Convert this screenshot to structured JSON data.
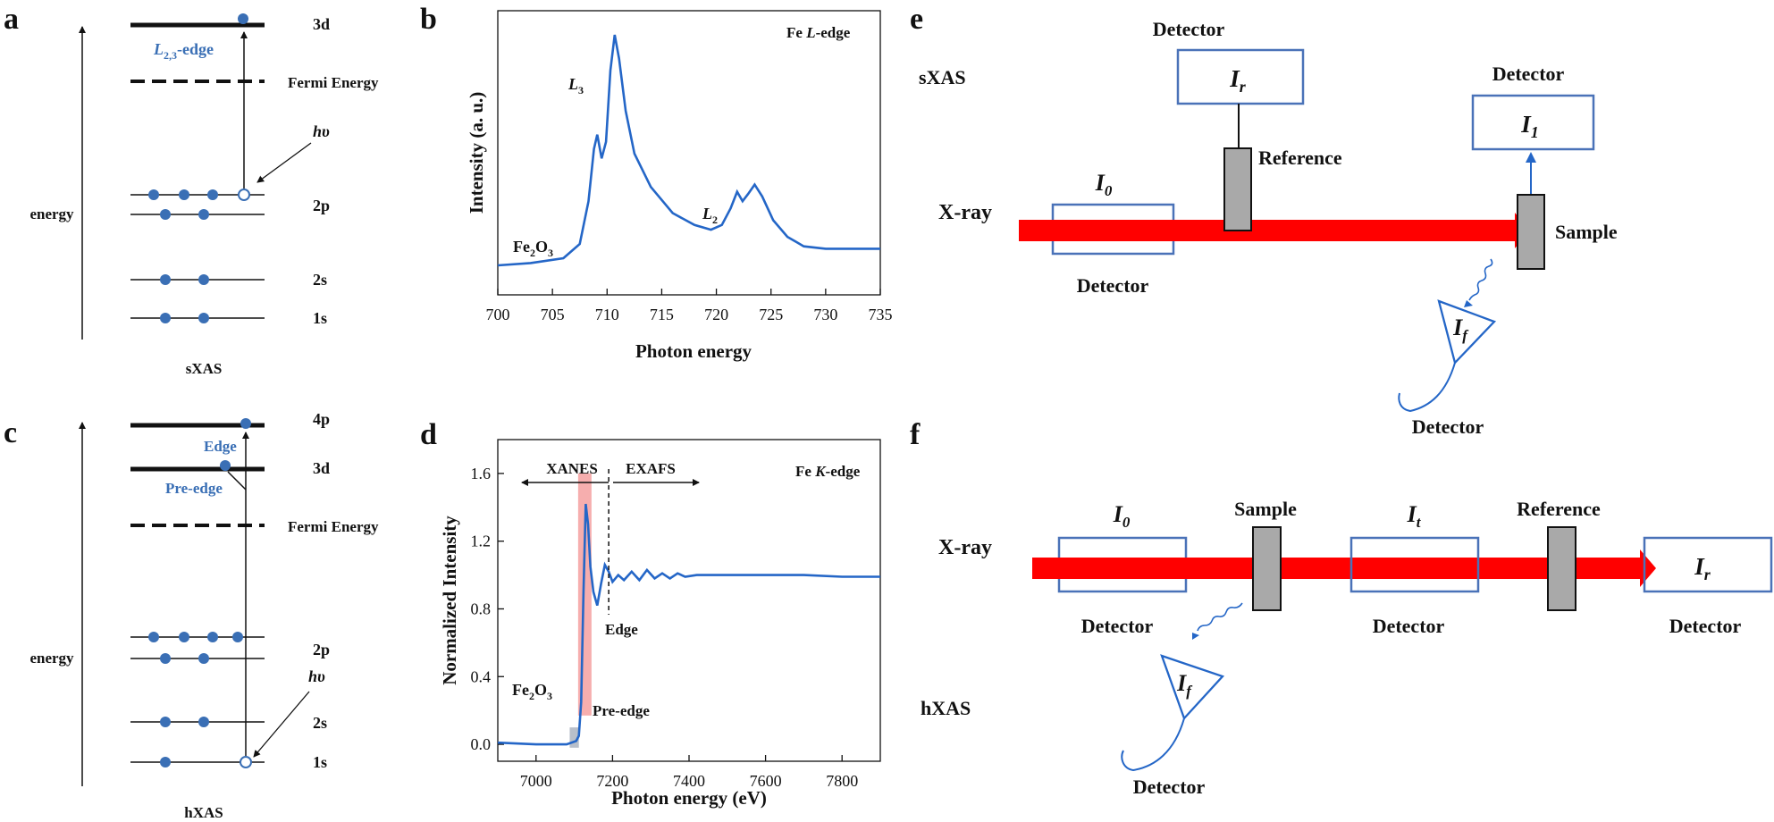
{
  "panels": {
    "a": {
      "letter": "a",
      "axis_label": "energy",
      "caption": "sXAS",
      "levels": {
        "l3d": "3d",
        "fermi": "Fermi Energy",
        "l2p": "2p",
        "l2s": "2s",
        "l1s": "1s"
      },
      "edge_label_prefix": "L",
      "edge_label_sub": "2,3",
      "edge_label_suffix": "-edge",
      "photon_label": "hυ"
    },
    "b": {
      "letter": "b",
      "title": "Fe L-edge",
      "title_prefix": "Fe ",
      "title_italic": "L",
      "title_suffix": "-edge",
      "sample": "Fe",
      "sample_sub": "2",
      "sample_suffix": "O",
      "sample_sub2": "3",
      "peak_l3": "L",
      "peak_l3_sub": "3",
      "peak_l2": "L",
      "peak_l2_sub": "2"
    },
    "c": {
      "letter": "c",
      "axis_label": "energy",
      "caption": "hXAS",
      "levels": {
        "l4p": "4p",
        "l3d": "3d",
        "fermi": "Fermi Energy",
        "l2p": "2p",
        "l2s": "2s",
        "l1s": "1s"
      },
      "edge_label": "Edge",
      "preedge_label": "Pre-edge",
      "photon_label": "hυ"
    },
    "d": {
      "letter": "d",
      "title_prefix": "Fe ",
      "title_italic": "K",
      "title_suffix": "-edge",
      "xanes": "XANES",
      "exafs": "EXAFS",
      "edge": "Edge",
      "preedge": "Pre-edge",
      "sample": "Fe",
      "sample_sub": "2",
      "sample_suffix": "O",
      "sample_sub2": "3"
    },
    "e": {
      "letter": "e",
      "mode": "sXAS",
      "xray": "X-ray",
      "detector_top": "Detector",
      "ir": "I",
      "ir_sub": "r",
      "reference": "Reference",
      "detector_right": "Detector",
      "i1": "I",
      "i1_sub": "1",
      "i0": "I",
      "i0_sub": "0",
      "detector_bottom": "Detector",
      "sample": "Sample",
      "if": "I",
      "if_sub": "f",
      "detector_fluor": "Detector"
    },
    "f": {
      "letter": "f",
      "mode": "hXAS",
      "xray": "X-ray",
      "i0": "I",
      "i0_sub": "0",
      "sample": "Sample",
      "it": "I",
      "it_sub": "t",
      "reference": "Reference",
      "ir": "I",
      "ir_sub": "r",
      "detector_1": "Detector",
      "detector_2": "Detector",
      "detector_3": "Detector",
      "if": "I",
      "if_sub": "f",
      "detector_fluor": "Detector"
    }
  },
  "chart_data": [
    {
      "type": "line",
      "panel": "b",
      "xlabel": "Photon energy",
      "ylabel": "Intensity (a. u.)",
      "xlim": [
        700,
        735
      ],
      "xticks": [
        "700",
        "705",
        "710",
        "715",
        "720",
        "725",
        "730",
        "735"
      ],
      "series": [
        {
          "x": [
            700,
            703,
            706,
            707.5,
            708.3,
            708.8,
            709.1,
            709.5,
            709.9,
            710.3,
            710.7,
            711.1,
            711.7,
            712.5,
            714,
            716,
            718,
            719.5,
            720.5,
            721.3,
            721.9,
            722.4,
            722.9,
            723.5,
            724.2,
            725.2,
            726.5,
            728,
            730,
            732,
            735
          ],
          "y": [
            0.03,
            0.04,
            0.06,
            0.12,
            0.3,
            0.52,
            0.58,
            0.48,
            0.55,
            0.85,
            1.0,
            0.9,
            0.68,
            0.5,
            0.36,
            0.25,
            0.2,
            0.18,
            0.2,
            0.27,
            0.34,
            0.3,
            0.33,
            0.37,
            0.32,
            0.22,
            0.15,
            0.11,
            0.1,
            0.1,
            0.1
          ]
        }
      ]
    },
    {
      "type": "line",
      "panel": "d",
      "xlabel": "Photon energy (eV)",
      "ylabel": "Normalized Intensity",
      "xlim": [
        6900,
        7900
      ],
      "ylim": [
        -0.1,
        1.8
      ],
      "xticks": [
        "7000",
        "7200",
        "7400",
        "7600",
        "7800"
      ],
      "yticks": [
        "0.0",
        "0.4",
        "0.8",
        "1.2",
        "1.6"
      ],
      "series": [
        {
          "x": [
            6900,
            7000,
            7080,
            7105,
            7112,
            7118,
            7124,
            7130,
            7136,
            7142,
            7150,
            7160,
            7170,
            7180,
            7190,
            7200,
            7215,
            7230,
            7250,
            7270,
            7290,
            7310,
            7330,
            7350,
            7370,
            7390,
            7420,
            7460,
            7500,
            7600,
            7700,
            7800,
            7900
          ],
          "y": [
            0.01,
            0.0,
            0.0,
            0.02,
            0.05,
            0.25,
            0.9,
            1.42,
            1.3,
            1.05,
            0.9,
            0.82,
            0.95,
            1.06,
            1.02,
            0.96,
            1.0,
            0.97,
            1.02,
            0.97,
            1.03,
            0.98,
            1.01,
            0.98,
            1.01,
            0.99,
            1.0,
            1.0,
            1.0,
            1.0,
            1.0,
            0.99,
            0.99
          ]
        }
      ]
    }
  ],
  "colors": {
    "line": "#2466c7",
    "level_dot": "#3a6fb5",
    "beam": "#ff0000",
    "box": "#4a72b8",
    "sample": "#a9a9a9",
    "pink": "#f4a0a0",
    "gray_box": "#b0b8c4"
  }
}
